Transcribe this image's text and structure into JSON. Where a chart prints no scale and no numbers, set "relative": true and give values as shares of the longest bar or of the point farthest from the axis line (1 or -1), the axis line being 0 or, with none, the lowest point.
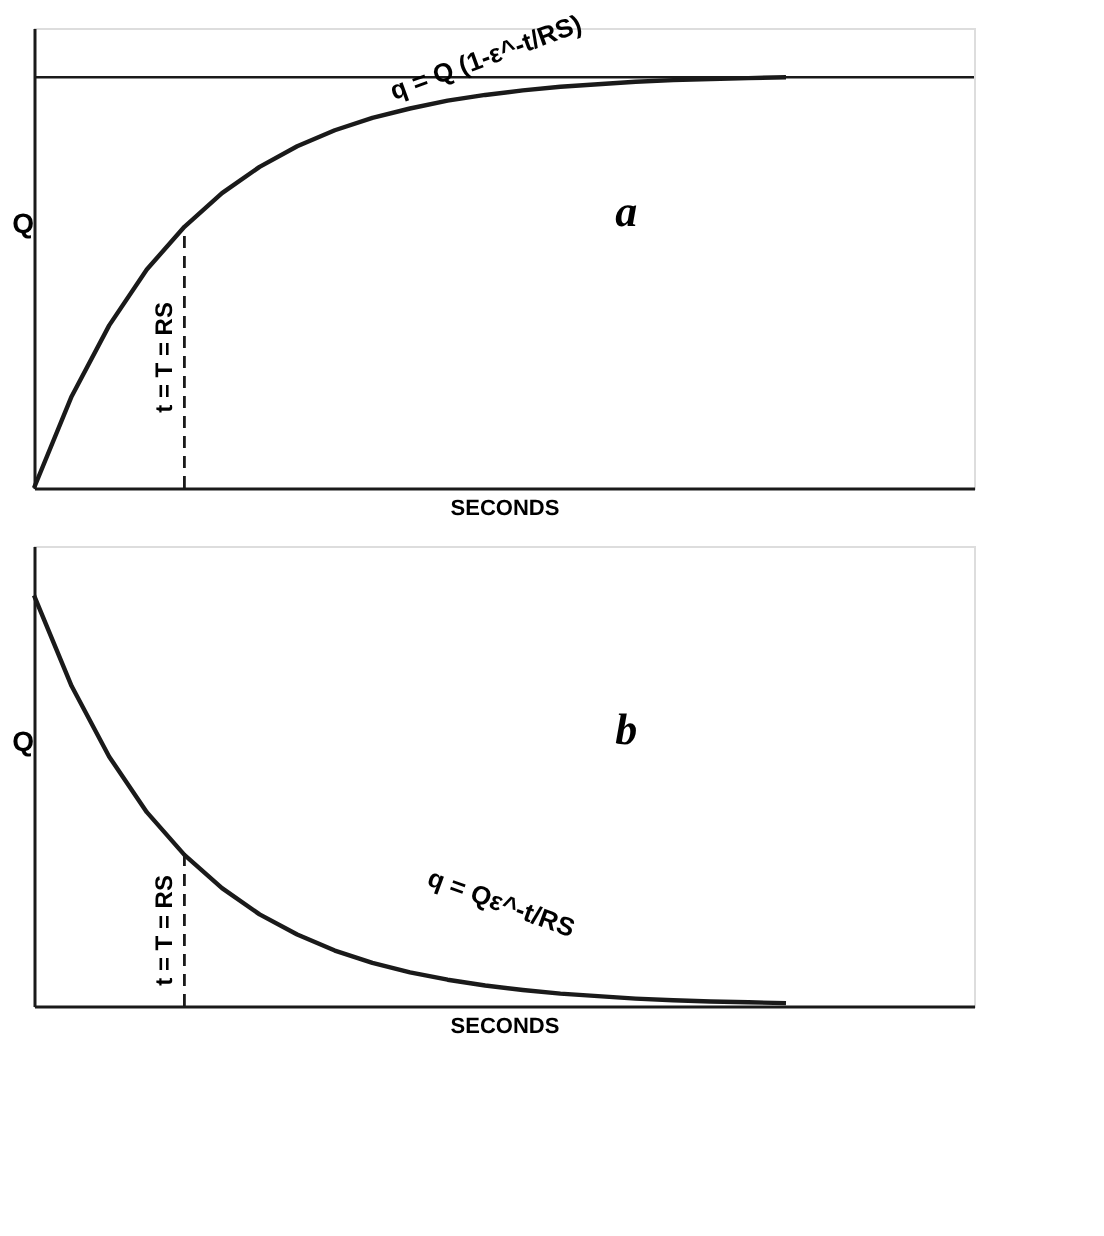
{
  "chart_data": [
    {
      "type": "line",
      "title": "a",
      "xlabel": "SECONDS",
      "ylabel": "Q",
      "relative": true,
      "tick_labels": false,
      "grid": false,
      "marker": "none",
      "line_style": "solid",
      "categories": [
        null,
        null,
        null,
        null,
        null,
        null,
        null,
        null,
        null,
        null,
        null,
        null,
        null,
        null,
        null,
        null,
        null,
        null,
        null,
        null,
        null,
        null,
        null,
        null,
        null,
        null
      ],
      "series": [
        {
          "color": "#1a1a1a",
          "values": [
            0,
            0.223,
            0.396,
            0.532,
            0.636,
            0.718,
            0.782,
            0.832,
            0.871,
            0.901,
            0.924,
            0.943,
            0.957,
            0.968,
            0.977,
            0.983,
            0.989,
            0.993,
            0.996,
            0.998,
            1,
            null,
            null,
            null,
            null,
            null
          ]
        }
      ],
      "ref_lines": [
        {
          "axis": "y",
          "value": 1,
          "line_style": "solid"
        }
      ],
      "annotations": [
        "t = T = RS",
        "q = Q (1-ε^-t/RS)"
      ]
    },
    {
      "type": "line",
      "title": "b",
      "xlabel": "SECONDS",
      "ylabel": "Q",
      "relative": true,
      "tick_labels": false,
      "grid": false,
      "marker": "none",
      "line_style": "solid",
      "categories": [
        null,
        null,
        null,
        null,
        null,
        null,
        null,
        null,
        null,
        null,
        null,
        null,
        null,
        null,
        null,
        null,
        null,
        null,
        null,
        null,
        null,
        null,
        null,
        null,
        null,
        null
      ],
      "series": [
        {
          "color": "#1a1a1a",
          "values": [
            1,
            0.779,
            0.607,
            0.472,
            0.368,
            0.287,
            0.223,
            0.174,
            0.135,
            0.105,
            0.082,
            0.064,
            0.05,
            0.039,
            0.03,
            0.024,
            0.018,
            0.014,
            0.011,
            0.009,
            0.007,
            null,
            null,
            null,
            null,
            null
          ]
        }
      ],
      "annotations": [
        "t = T = RS",
        "q = Qε^-t/RS"
      ]
    }
  ]
}
